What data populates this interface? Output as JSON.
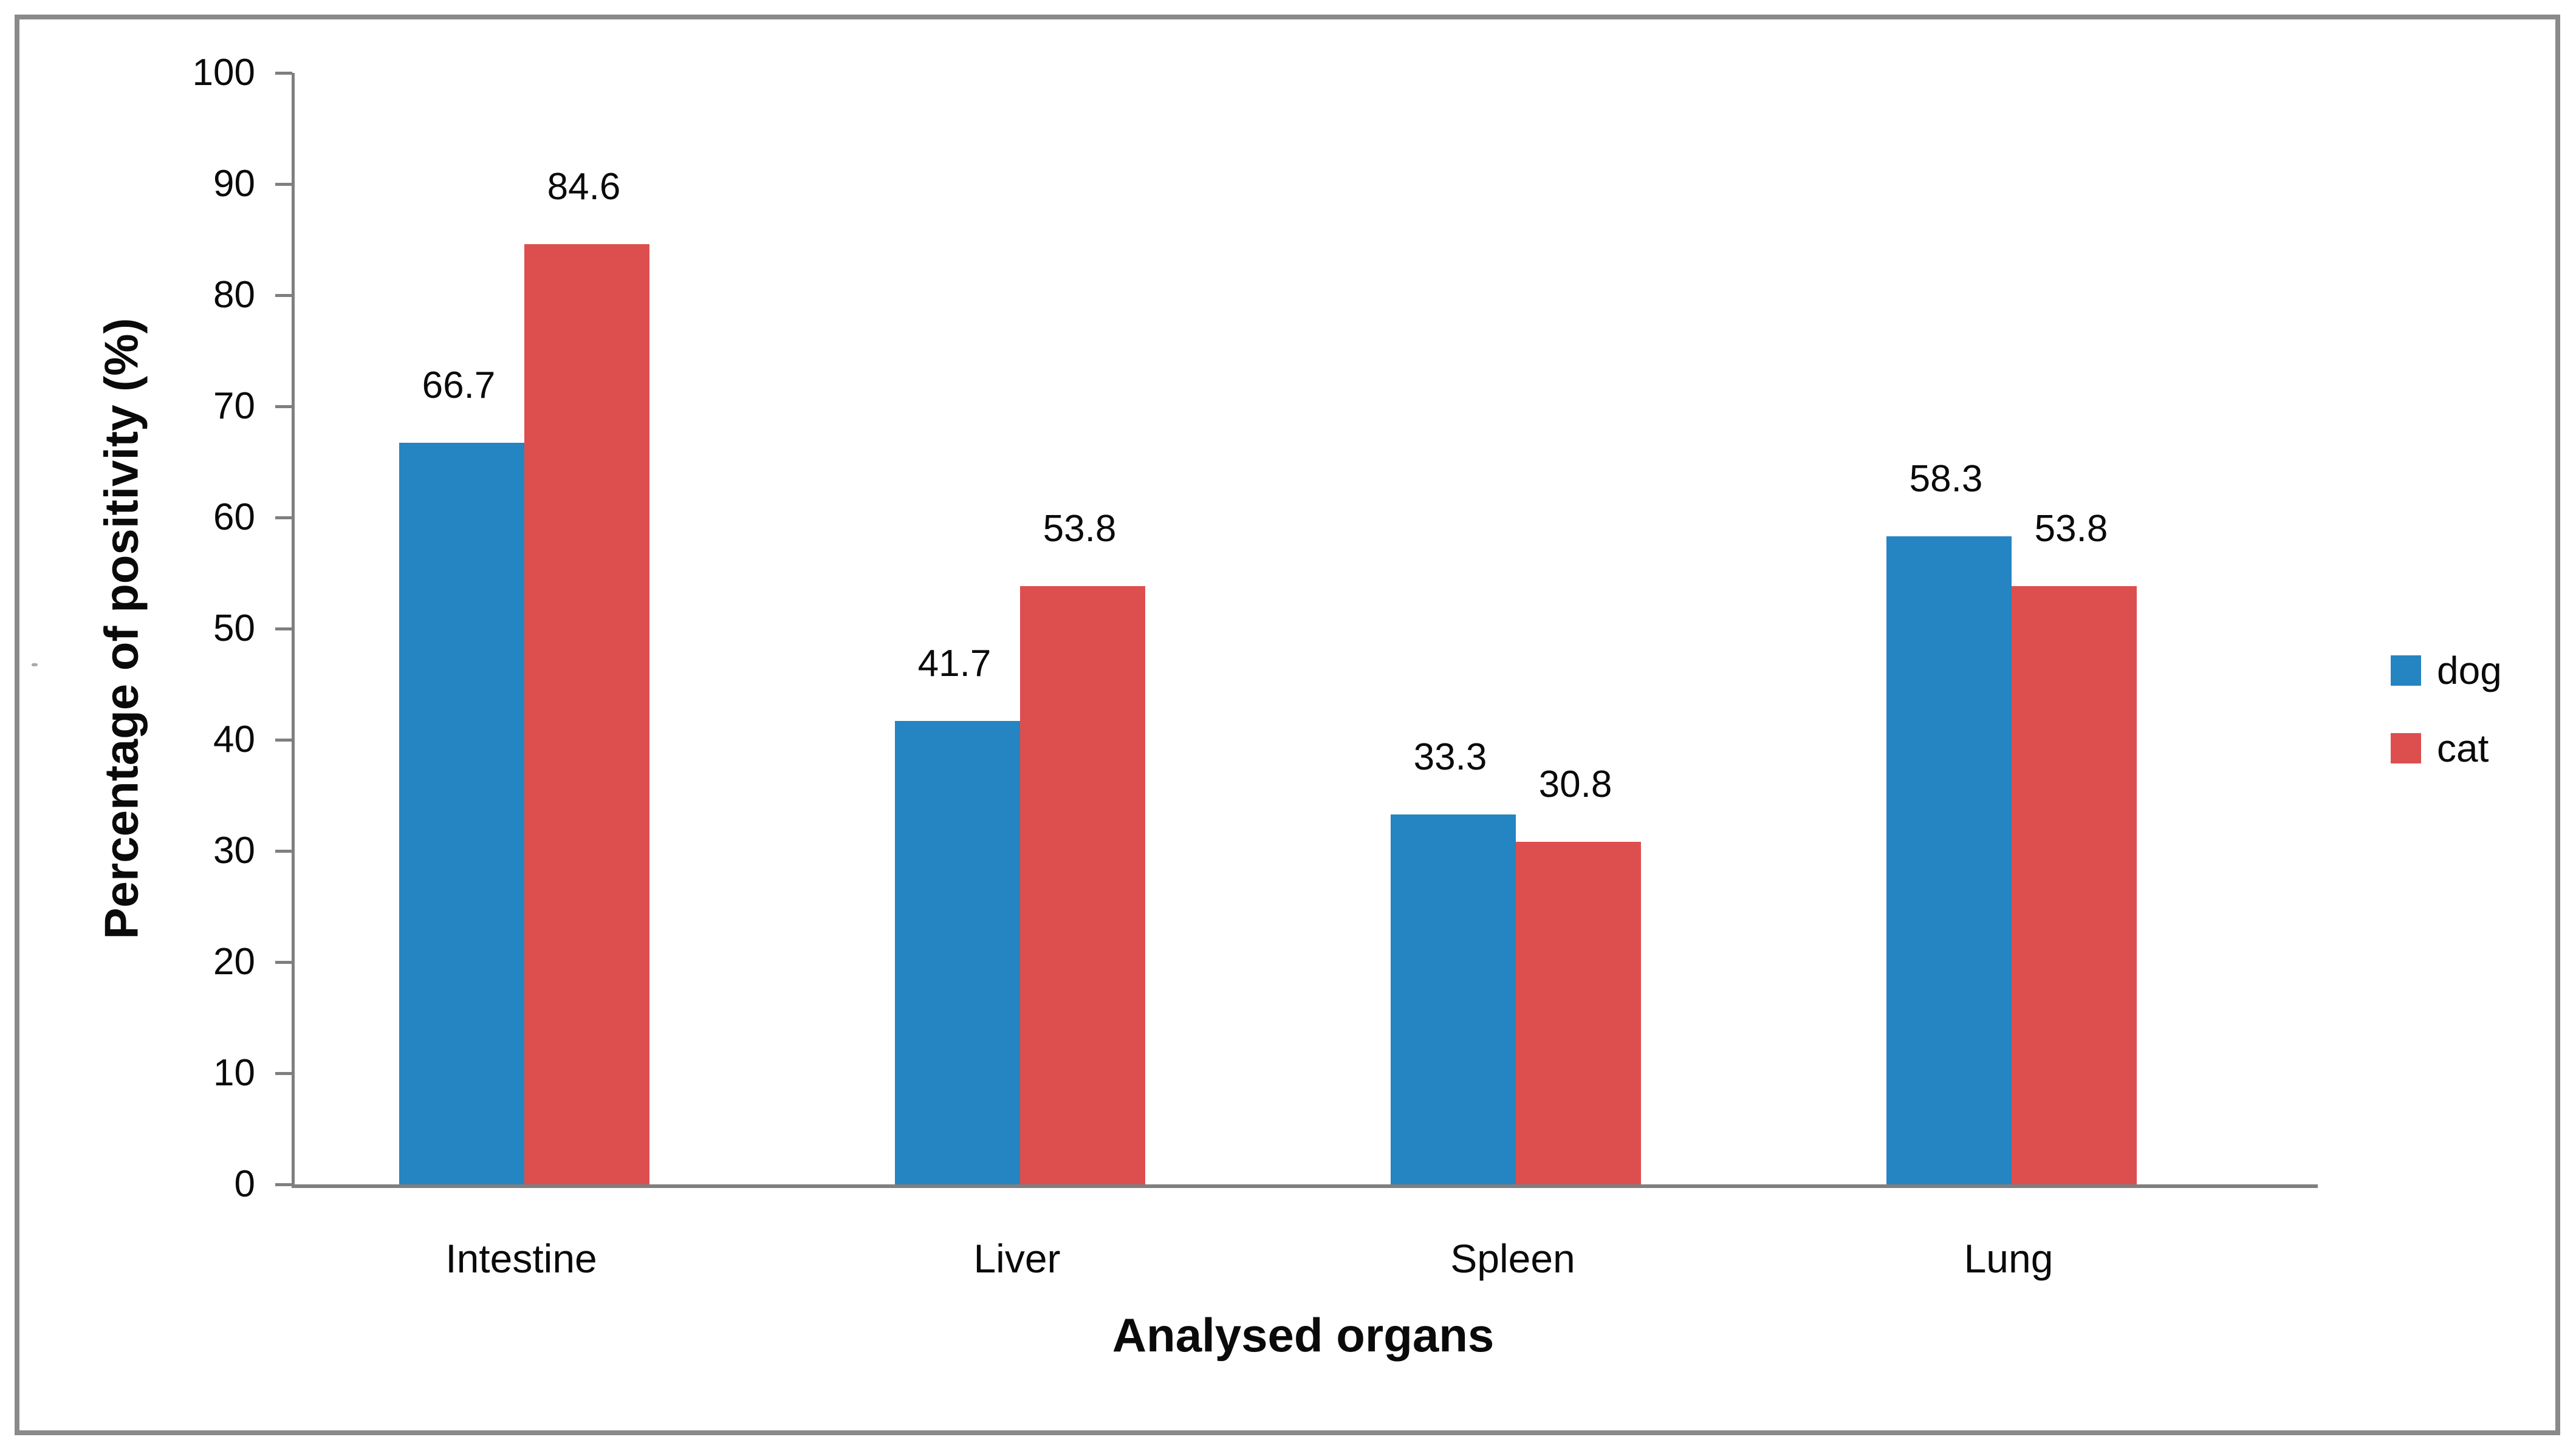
{
  "figure": {
    "background": "#ffffff",
    "frame_border_color": "#8a8a8a",
    "axis_line_color": "#7f7f7f",
    "text_color": "#0a0a0a"
  },
  "chart_data": {
    "type": "bar",
    "title": "",
    "categories": [
      "Intestine",
      "Liver",
      "Spleen",
      "Lung"
    ],
    "series": [
      {
        "name": "dog",
        "color": "#2584C2",
        "values": [
          66.7,
          41.7,
          33.3,
          58.3
        ]
      },
      {
        "name": "cat",
        "color": "#DC4F4E",
        "values": [
          84.6,
          53.8,
          30.8,
          53.8
        ]
      }
    ],
    "data_labels": [
      "66.7",
      "84.6",
      "41.7",
      "53.8",
      "33.3",
      "30.8",
      "58.3",
      "53.8"
    ],
    "xlabel": "Analysed organs",
    "ylabel": "Percentage of positivity (%)",
    "ylim": [
      0,
      100
    ],
    "yticks": [
      0,
      10,
      20,
      30,
      40,
      50,
      60,
      70,
      80,
      90,
      100
    ],
    "grid": false,
    "legend_position": "right",
    "legend_labels": [
      "dog",
      "cat"
    ]
  }
}
